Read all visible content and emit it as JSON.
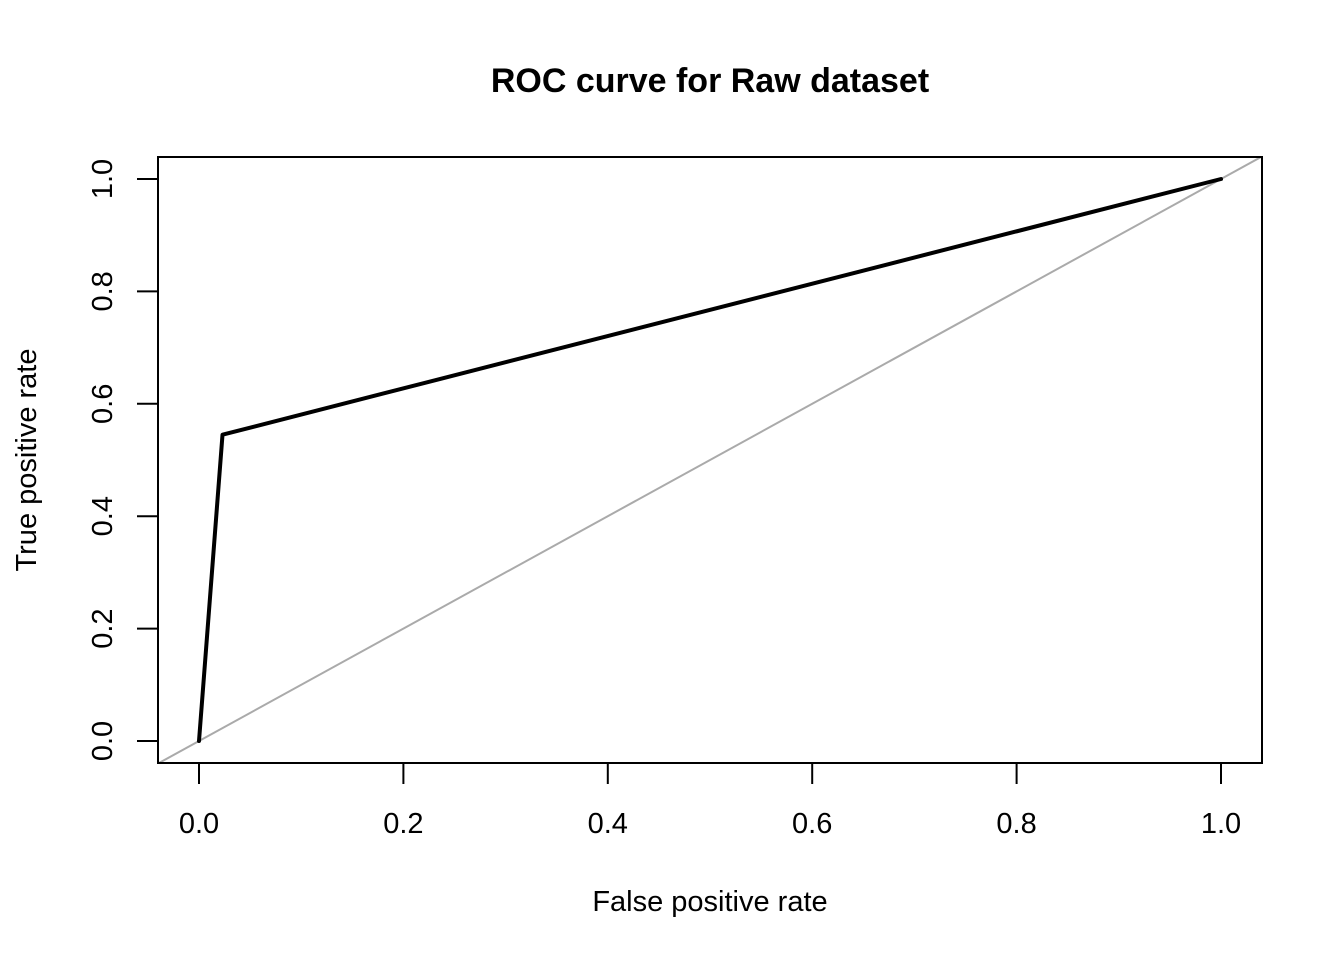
{
  "chart_data": {
    "type": "line",
    "title": "ROC curve for Raw dataset",
    "xlabel": "False positive rate",
    "ylabel": "True positive rate",
    "xlim": [
      0,
      1
    ],
    "ylim": [
      0,
      1
    ],
    "x_ticks": [
      0.0,
      0.2,
      0.4,
      0.6,
      0.8,
      1.0
    ],
    "y_ticks": [
      0.0,
      0.2,
      0.4,
      0.6,
      0.8,
      1.0
    ],
    "x_tick_labels": [
      "0.0",
      "0.2",
      "0.4",
      "0.6",
      "0.8",
      "1.0"
    ],
    "y_tick_labels": [
      "0.0",
      "0.2",
      "0.4",
      "0.6",
      "0.8",
      "1.0"
    ],
    "grid": false,
    "legend": "none",
    "series": [
      {
        "x": [
          0.0,
          0.023,
          1.0
        ],
        "y": [
          0.0,
          0.545,
          1.0
        ],
        "color": "#000000"
      }
    ],
    "reference_line": {
      "type": "diagonal",
      "x": [
        0.0,
        1.0
      ],
      "y": [
        0.0,
        1.0
      ],
      "color": "#aaaaaa"
    }
  }
}
